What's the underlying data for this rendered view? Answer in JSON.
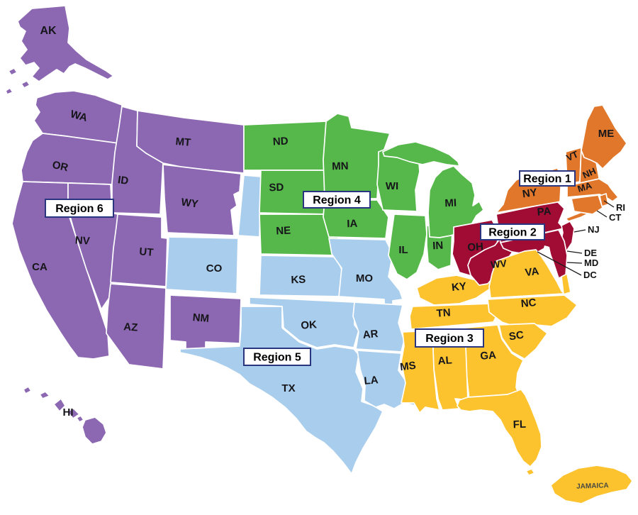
{
  "regions": [
    {
      "id": "region1",
      "label": "Region 1",
      "color": "#E0772A",
      "states": [
        "NY",
        "VT",
        "NH",
        "ME",
        "MA",
        "RI",
        "CT"
      ]
    },
    {
      "id": "region2",
      "label": "Region 2",
      "color": "#A00C34",
      "states": [
        "PA",
        "NJ",
        "OH",
        "WV",
        "DE",
        "MD",
        "DC"
      ]
    },
    {
      "id": "region3",
      "label": "Region 3",
      "color": "#FCC32F",
      "states": [
        "KY",
        "TN",
        "VA",
        "NC",
        "SC",
        "GA",
        "AL",
        "MS",
        "FL",
        "JAMAICA"
      ]
    },
    {
      "id": "region4",
      "label": "Region 4",
      "color": "#56B84A",
      "states": [
        "ND",
        "SD",
        "NE",
        "MN",
        "IA",
        "WI",
        "IL",
        "IN",
        "MI"
      ]
    },
    {
      "id": "region5",
      "label": "Region 5",
      "color": "#A9CDEC",
      "states": [
        "CO",
        "KS",
        "OK",
        "TX",
        "MO",
        "AR",
        "LA"
      ]
    },
    {
      "id": "region6",
      "label": "Region 6",
      "color": "#8D68B2",
      "states": [
        "AK",
        "WA",
        "OR",
        "CA",
        "NV",
        "ID",
        "MT",
        "WY",
        "UT",
        "AZ",
        "NM",
        "HI"
      ]
    }
  ],
  "state_labels": [
    {
      "code": "AK",
      "region": "region6"
    },
    {
      "code": "HI",
      "region": "region6"
    },
    {
      "code": "WA",
      "region": "region6"
    },
    {
      "code": "OR",
      "region": "region6"
    },
    {
      "code": "CA",
      "region": "region6"
    },
    {
      "code": "NV",
      "region": "region6"
    },
    {
      "code": "ID",
      "region": "region6"
    },
    {
      "code": "MT",
      "region": "region6"
    },
    {
      "code": "WY",
      "region": "region6"
    },
    {
      "code": "UT",
      "region": "region6"
    },
    {
      "code": "AZ",
      "region": "region6"
    },
    {
      "code": "NM",
      "region": "region6"
    },
    {
      "code": "CO",
      "region": "region5"
    },
    {
      "code": "ND",
      "region": "region4"
    },
    {
      "code": "SD",
      "region": "region4"
    },
    {
      "code": "NE",
      "region": "region4"
    },
    {
      "code": "KS",
      "region": "region5"
    },
    {
      "code": "OK",
      "region": "region5"
    },
    {
      "code": "TX",
      "region": "region5"
    },
    {
      "code": "MN",
      "region": "region4"
    },
    {
      "code": "IA",
      "region": "region4"
    },
    {
      "code": "MO",
      "region": "region5"
    },
    {
      "code": "AR",
      "region": "region5"
    },
    {
      "code": "LA",
      "region": "region5"
    },
    {
      "code": "WI",
      "region": "region4"
    },
    {
      "code": "IL",
      "region": "region4"
    },
    {
      "code": "IN",
      "region": "region4"
    },
    {
      "code": "MI",
      "region": "region4"
    },
    {
      "code": "OH",
      "region": "region2"
    },
    {
      "code": "WV",
      "region": "region2"
    },
    {
      "code": "PA",
      "region": "region2"
    },
    {
      "code": "NY",
      "region": "region1"
    },
    {
      "code": "VT",
      "region": "region1"
    },
    {
      "code": "NH",
      "region": "region1"
    },
    {
      "code": "MA",
      "region": "region1"
    },
    {
      "code": "ME",
      "region": "region1"
    },
    {
      "code": "KY",
      "region": "region3"
    },
    {
      "code": "TN",
      "region": "region3"
    },
    {
      "code": "VA",
      "region": "region3"
    },
    {
      "code": "NC",
      "region": "region3"
    },
    {
      "code": "SC",
      "region": "region3"
    },
    {
      "code": "GA",
      "region": "region3"
    },
    {
      "code": "AL",
      "region": "region3"
    },
    {
      "code": "MS",
      "region": "region3"
    },
    {
      "code": "FL",
      "region": "region3"
    },
    {
      "code": "JAMAICA",
      "region": "region3"
    }
  ],
  "callouts": [
    {
      "code": "RI",
      "region": "region1"
    },
    {
      "code": "CT",
      "region": "region1"
    },
    {
      "code": "NJ",
      "region": "region2"
    },
    {
      "code": "DE",
      "region": "region2"
    },
    {
      "code": "MD",
      "region": "region2"
    },
    {
      "code": "DC",
      "region": "region2"
    }
  ],
  "colors": {
    "background": "#FFFFFF",
    "state_border": "#FFFFFF",
    "water": "#FFFFFF",
    "state_label_text": "#15151A",
    "region_box_bg": "#FFFFFF",
    "region_box_border": "#2A3580",
    "region_box_text": "#000000",
    "callout_line": "#1A1A1A",
    "callout_text": "#111111",
    "jamaica_label_text": "#4A4A42"
  }
}
